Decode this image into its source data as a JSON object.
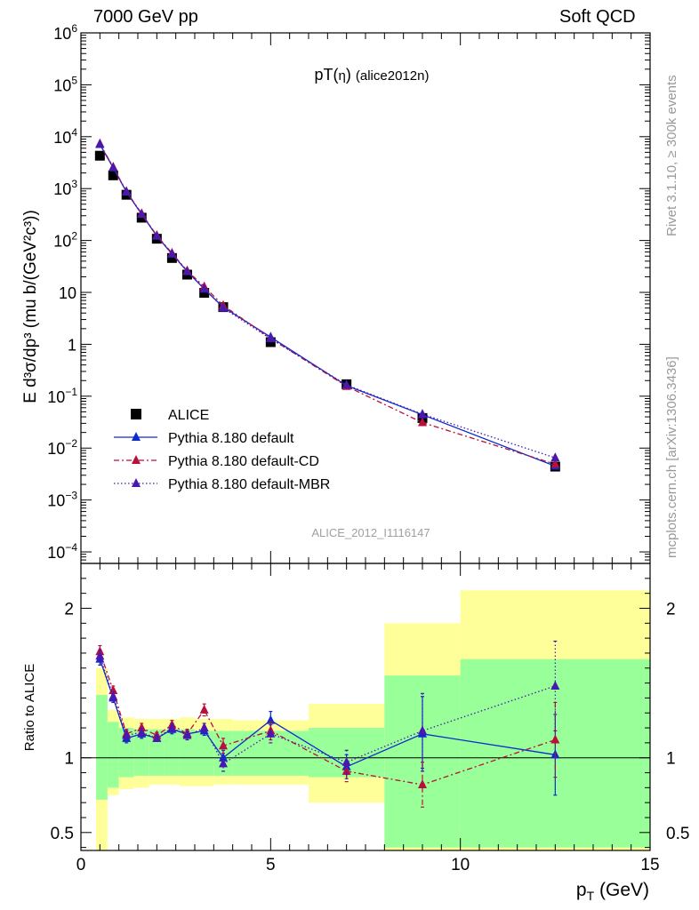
{
  "header": {
    "left": "7000 GeV pp",
    "right": "Soft QCD"
  },
  "side_labels": {
    "rivet": "Rivet 3.1.10, ≥ 300k events",
    "mcplots": "mcplots.cern.ch [arXiv:1306.3436]"
  },
  "watermark": "ALICE_2012_I1116147",
  "chart_data": [
    {
      "type": "scatter",
      "title": "pT(η) (alice2012n)",
      "ylabel": "E d³σ/dp³ (mu b/(GeV²c³))",
      "xlabel": "p_T (GeV)",
      "yscale": "log",
      "xlim": [
        0,
        15
      ],
      "ylim": [
        6e-05,
        1000000
      ],
      "ytick_labels": [
        "10⁻⁴",
        "10⁻³",
        "10⁻²",
        "10⁻¹",
        "1",
        "10",
        "10²",
        "10³",
        "10⁴",
        "10⁵",
        "10⁶"
      ],
      "legend_placement": "lower-left",
      "series": [
        {
          "name": "ALICE",
          "color": "#000000",
          "marker": "square",
          "x": [
            0.5,
            0.85,
            1.2,
            1.6,
            2.0,
            2.4,
            2.8,
            3.25,
            3.75,
            5.0,
            7.0,
            9.0,
            12.5
          ],
          "y": [
            4300,
            1800,
            760,
            275,
            108,
            46,
            22,
            9.8,
            5.2,
            1.1,
            0.17,
            0.038,
            0.0044
          ]
        },
        {
          "name": "Pythia 8.180 default",
          "color": "#0b2bcf",
          "dash": "solid",
          "x": [
            0.5,
            0.85,
            1.2,
            1.6,
            2.0,
            2.4,
            2.8,
            3.25,
            3.75,
            5.0,
            7.0,
            9.0,
            12.5
          ],
          "y": [
            7100,
            2520,
            860,
            320,
            122,
            55,
            25.5,
            11.6,
            5.2,
            1.38,
            0.16,
            0.044,
            0.0045
          ]
        },
        {
          "name": "Pythia 8.180 default-CD",
          "color": "#b8103a",
          "dash": "dashdot",
          "x": [
            0.5,
            0.85,
            1.2,
            1.6,
            2.0,
            2.4,
            2.8,
            3.25,
            3.75,
            5.0,
            7.0,
            9.0,
            12.5
          ],
          "y": [
            7300,
            2600,
            880,
            330,
            125,
            57,
            26.0,
            12.9,
            5.6,
            1.3,
            0.155,
            0.031,
            0.0049
          ]
        },
        {
          "name": "Pythia 8.180 default-MBR",
          "color": "#4a18b0",
          "dash": "dotted",
          "x": [
            0.5,
            0.85,
            1.2,
            1.6,
            2.0,
            2.4,
            2.8,
            3.25,
            3.75,
            5.0,
            7.0,
            9.0,
            12.5
          ],
          "y": [
            7200,
            2540,
            870,
            322,
            122,
            55,
            25.2,
            11.8,
            5.0,
            1.28,
            0.165,
            0.045,
            0.0065
          ]
        }
      ]
    },
    {
      "type": "scatter",
      "ylabel": "Ratio to ALICE",
      "xlabel": "p_T (GeV)",
      "xlim": [
        0,
        15
      ],
      "ylim": [
        0.38,
        2.3
      ],
      "ytick_labels": [
        "0.5",
        "1",
        "2"
      ],
      "xtick_labels": [
        "0",
        "5",
        "10",
        "15"
      ],
      "bands": [
        {
          "x0": 0.4,
          "x1": 0.7,
          "inner": [
            0.72,
            1.42
          ],
          "outer": [
            0.38,
            1.6
          ]
        },
        {
          "x0": 0.7,
          "x1": 1.0,
          "inner": [
            0.8,
            1.24
          ],
          "outer": [
            0.75,
            1.32
          ]
        },
        {
          "x0": 1.0,
          "x1": 1.4,
          "inner": [
            0.87,
            1.2
          ],
          "outer": [
            0.79,
            1.27
          ]
        },
        {
          "x0": 1.4,
          "x1": 1.8,
          "inner": [
            0.88,
            1.19
          ],
          "outer": [
            0.8,
            1.26
          ]
        },
        {
          "x0": 1.8,
          "x1": 2.2,
          "inner": [
            0.88,
            1.19
          ],
          "outer": [
            0.82,
            1.26
          ]
        },
        {
          "x0": 2.2,
          "x1": 2.6,
          "inner": [
            0.88,
            1.19
          ],
          "outer": [
            0.82,
            1.26
          ]
        },
        {
          "x0": 2.6,
          "x1": 3.0,
          "inner": [
            0.88,
            1.19
          ],
          "outer": [
            0.81,
            1.27
          ]
        },
        {
          "x0": 3.0,
          "x1": 3.5,
          "inner": [
            0.88,
            1.18
          ],
          "outer": [
            0.81,
            1.26
          ]
        },
        {
          "x0": 3.5,
          "x1": 4.0,
          "inner": [
            0.88,
            1.18
          ],
          "outer": [
            0.82,
            1.26
          ]
        },
        {
          "x0": 4.0,
          "x1": 6.0,
          "inner": [
            0.88,
            1.18
          ],
          "outer": [
            0.82,
            1.25
          ]
        },
        {
          "x0": 6.0,
          "x1": 8.0,
          "inner": [
            0.87,
            1.2
          ],
          "outer": [
            0.7,
            1.36
          ]
        },
        {
          "x0": 8.0,
          "x1": 10.0,
          "inner": [
            0.4,
            1.55
          ],
          "outer": [
            0.38,
            1.9
          ]
        },
        {
          "x0": 10.0,
          "x1": 15.0,
          "inner": [
            0.4,
            1.66
          ],
          "outer": [
            0.38,
            2.12
          ]
        }
      ],
      "series": [
        {
          "name": "Pythia 8.180 default",
          "color": "#0b2bcf",
          "dash": "solid",
          "x": [
            0.5,
            0.85,
            1.2,
            1.6,
            2.0,
            2.4,
            2.8,
            3.25,
            3.75,
            5.0,
            7.0,
            9.0,
            12.5
          ],
          "y": [
            1.66,
            1.4,
            1.13,
            1.16,
            1.13,
            1.19,
            1.16,
            1.18,
            1.0,
            1.25,
            0.94,
            1.16,
            1.02
          ],
          "err": [
            0.04,
            0.03,
            0.03,
            0.03,
            0.02,
            0.03,
            0.03,
            0.03,
            0.05,
            0.06,
            0.08,
            0.25,
            0.27
          ]
        },
        {
          "name": "Pythia 8.180 default-CD",
          "color": "#b8103a",
          "dash": "dashdot",
          "x": [
            0.5,
            0.85,
            1.2,
            1.6,
            2.0,
            2.4,
            2.8,
            3.25,
            3.75,
            5.0,
            7.0,
            9.0,
            12.5
          ],
          "y": [
            1.71,
            1.45,
            1.16,
            1.2,
            1.15,
            1.22,
            1.16,
            1.32,
            1.08,
            1.18,
            0.91,
            0.82,
            1.12
          ],
          "err": [
            0.04,
            0.03,
            0.03,
            0.03,
            0.02,
            0.03,
            0.03,
            0.04,
            0.05,
            0.06,
            0.07,
            0.15,
            0.25
          ]
        },
        {
          "name": "Pythia 8.180 default-MBR",
          "color": "#4a18b0",
          "dash": "dotted",
          "x": [
            0.5,
            0.85,
            1.2,
            1.6,
            2.0,
            2.4,
            2.8,
            3.25,
            3.75,
            5.0,
            7.0,
            9.0,
            12.5
          ],
          "y": [
            1.68,
            1.41,
            1.15,
            1.17,
            1.13,
            1.2,
            1.15,
            1.2,
            0.96,
            1.16,
            0.97,
            1.18,
            1.48
          ],
          "err": [
            0.04,
            0.03,
            0.03,
            0.03,
            0.02,
            0.03,
            0.03,
            0.03,
            0.05,
            0.06,
            0.08,
            0.25,
            0.3
          ]
        }
      ]
    }
  ]
}
